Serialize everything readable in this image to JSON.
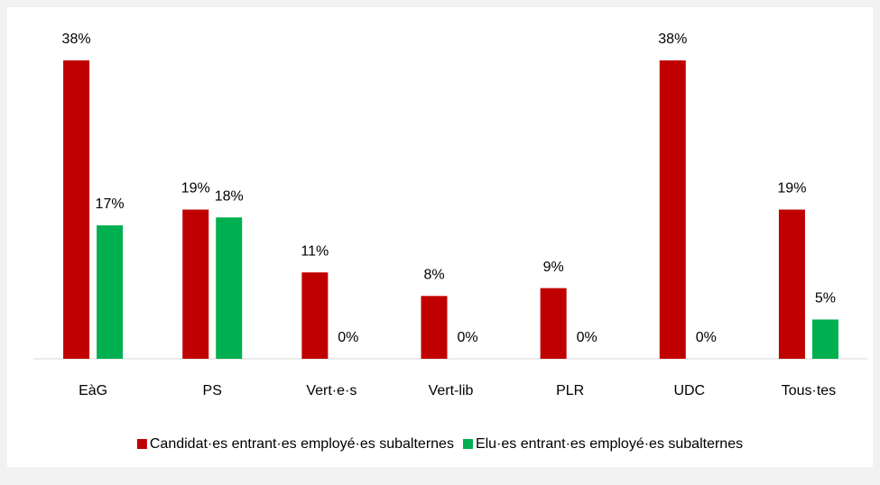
{
  "chart_data": {
    "type": "bar",
    "categories": [
      "EàG",
      "PS",
      "Vert·e·s",
      "Vert-lib",
      "PLR",
      "UDC",
      "Tous·tes"
    ],
    "series": [
      {
        "name": "Candidat·es entrant·es employé·es subalternes",
        "color": "#c00000",
        "values": [
          38,
          19,
          11,
          8,
          9,
          38,
          19
        ],
        "value_labels": [
          "38%",
          "19%",
          "11%",
          "8%",
          "9%",
          "38%",
          "19%"
        ]
      },
      {
        "name": "Elu·es entrant·es employé·es subalternes",
        "color": "#00b050",
        "values": [
          17,
          18,
          0,
          0,
          0,
          0,
          5
        ],
        "value_labels": [
          "17%",
          "18%",
          "0%",
          "0%",
          "0%",
          "0%",
          "5%"
        ]
      }
    ],
    "legend": "bottom"
  }
}
